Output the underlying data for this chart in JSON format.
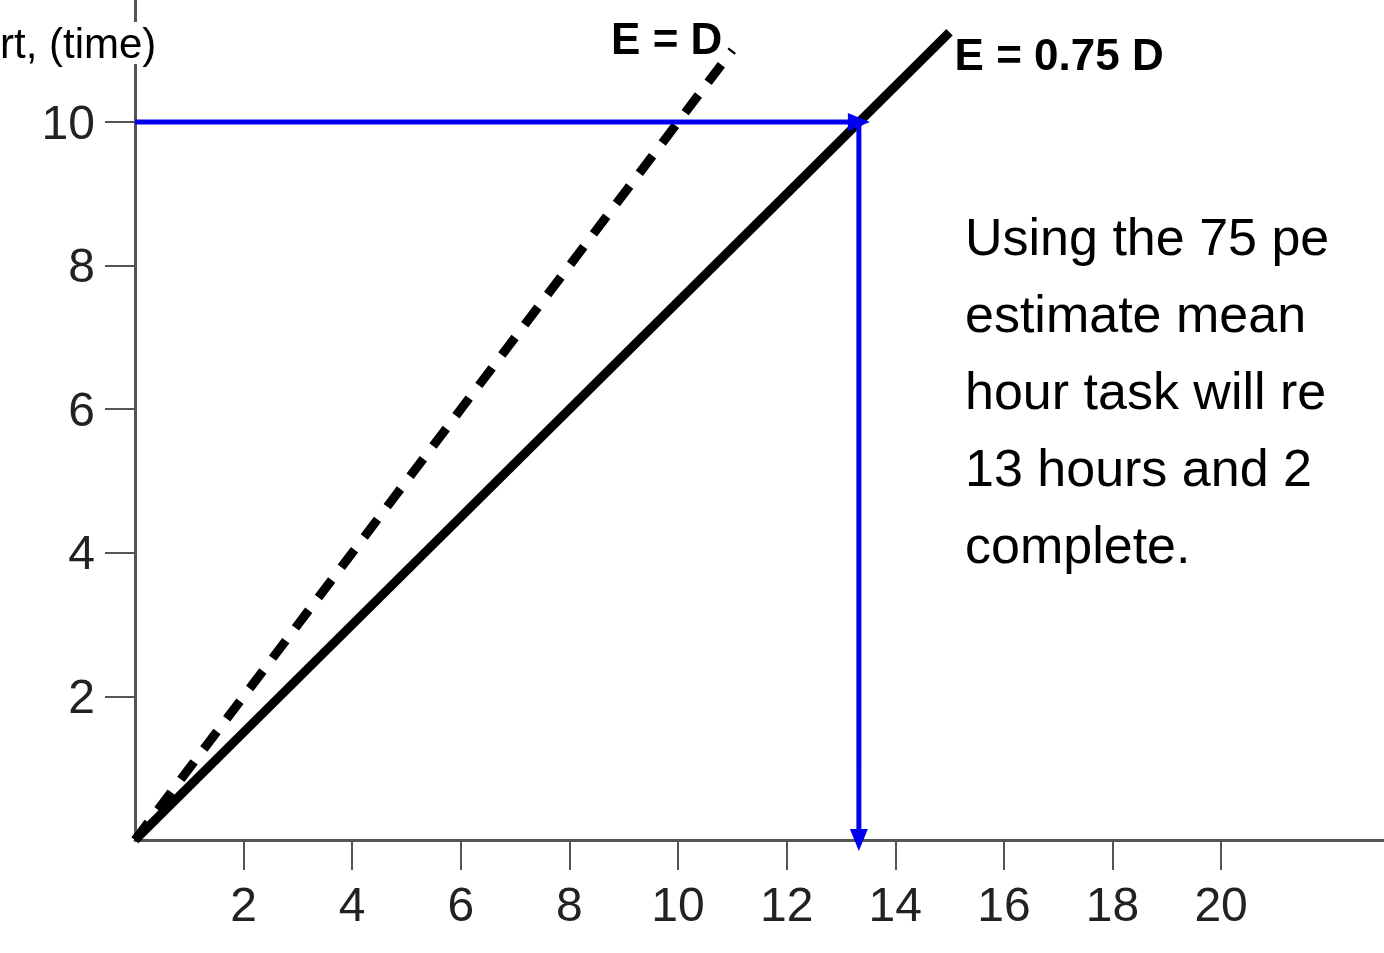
{
  "chart_data": {
    "type": "line",
    "ylabel": "rt, (time)",
    "xlim": [
      0,
      23
    ],
    "ylim": [
      0,
      11.7
    ],
    "xticks": [
      2,
      4,
      6,
      8,
      10,
      12,
      14,
      16,
      18,
      20
    ],
    "yticks": [
      2,
      4,
      6,
      8,
      10
    ],
    "grid": false,
    "series": [
      {
        "color": "#000000",
        "x": [
          0,
          11
        ],
        "values": [
          0,
          11
        ],
        "line_style": "dashed"
      },
      {
        "color": "#000000",
        "x": [
          0,
          15
        ],
        "values": [
          0,
          11.25
        ],
        "line_style": "solid"
      },
      {
        "color": "#0000ee",
        "x": [
          0,
          13.33,
          13.33
        ],
        "values": [
          10,
          10,
          0
        ],
        "line_style": "solid",
        "marker": "triangle"
      }
    ],
    "annotations": [
      {
        "text": "E = D",
        "x": 11,
        "y": 11
      },
      {
        "text": "E = 0.75 D",
        "x": 15,
        "y": 11.25
      },
      "Using the 75 pe\nestimate mean\nhour task will re\n13 hours and 2\ncomplete."
    ]
  }
}
